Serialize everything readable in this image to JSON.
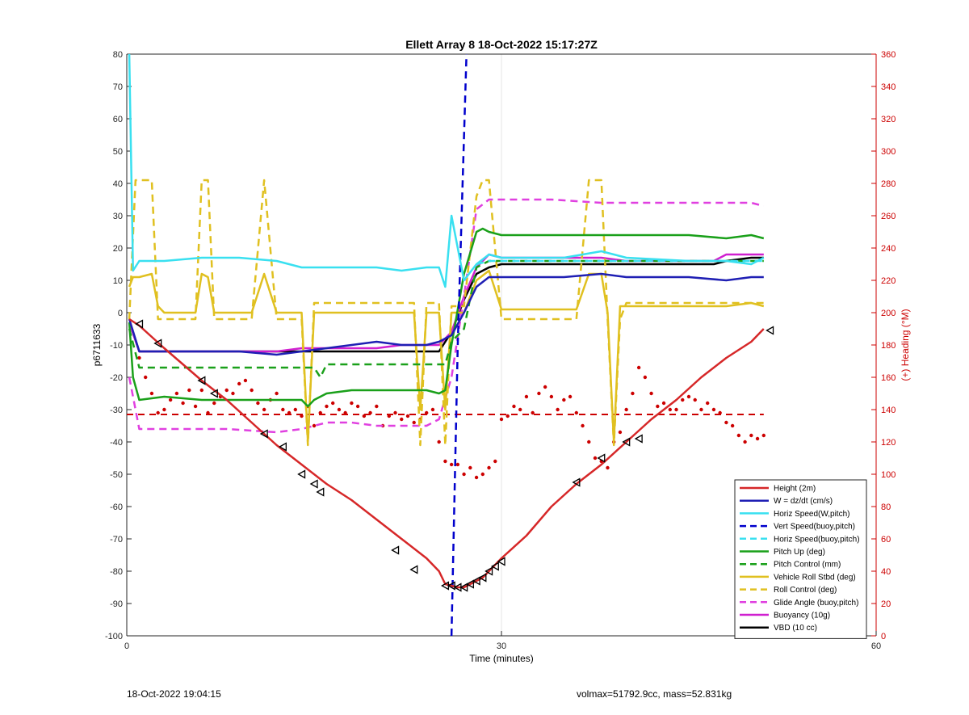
{
  "footer": {
    "timestamp": "18-Oct-2022 19:04:15",
    "summary": "volmax=51792.9cc, mass=52.831kg"
  },
  "chart_data": {
    "type": "line",
    "title": "Ellett Array 8 18-Oct-2022 15:17:27Z",
    "xlabel": "Time (minutes)",
    "ylabel": "p6711633",
    "y2label": "(+) Heading (°M)",
    "xlim": [
      0,
      60
    ],
    "ylim": [
      -100,
      80
    ],
    "y2lim": [
      0,
      360
    ],
    "xticks": [
      0,
      30,
      60
    ],
    "yticks": [
      -100,
      -90,
      -80,
      -70,
      -60,
      -50,
      -40,
      -30,
      -20,
      -10,
      0,
      10,
      20,
      30,
      40,
      50,
      60,
      70,
      80
    ],
    "y2ticks": [
      0,
      20,
      40,
      60,
      80,
      100,
      120,
      140,
      160,
      180,
      200,
      220,
      240,
      260,
      280,
      300,
      320,
      340,
      360
    ],
    "grid": "x-only",
    "legend_location": "bottom-right",
    "vertical_marker_x": 26.5,
    "series": [
      {
        "name": "Height (2m)",
        "color": "#d62728",
        "style": "solid",
        "x": [
          0.2,
          1,
          3,
          6,
          8,
          10,
          12,
          14,
          16,
          18,
          20,
          22,
          24,
          25,
          25.5,
          26,
          26.5,
          27,
          27.5,
          28,
          28.5,
          29,
          29.5,
          30,
          32,
          34,
          36,
          38,
          40,
          42,
          44,
          46,
          48,
          50,
          51
        ],
        "y": [
          -2,
          -4,
          -11,
          -21,
          -27,
          -34,
          -41,
          -47,
          -53,
          -58,
          -64,
          -70,
          -76,
          -80,
          -84,
          -84.5,
          -85,
          -85,
          -84,
          -83,
          -82,
          -80,
          -78,
          -76,
          -69,
          -60,
          -53,
          -47,
          -40,
          -33,
          -27,
          -20,
          -14,
          -9,
          -5
        ]
      },
      {
        "name": "W = dz/dt (cm/s)",
        "color": "#1f1fb4",
        "style": "solid",
        "x": [
          0.2,
          1,
          3,
          6,
          9,
          12,
          14,
          16,
          18,
          20,
          22,
          24,
          25,
          26,
          27,
          28,
          29,
          30,
          35,
          38,
          40,
          45,
          48,
          50,
          51
        ],
        "y": [
          -2,
          -12,
          -12,
          -12,
          -12,
          -13,
          -12,
          -11,
          -10,
          -9,
          -10,
          -10,
          -9,
          -7,
          0,
          8,
          11,
          11,
          11,
          12,
          11,
          11,
          10,
          11,
          11
        ]
      },
      {
        "name": "Horiz Speed(W,pitch)",
        "color": "#39e0f0",
        "style": "solid",
        "x": [
          0.2,
          0.5,
          1,
          3,
          6,
          9,
          12,
          14,
          16,
          18,
          20,
          22,
          24,
          25,
          25.5,
          26,
          27,
          28,
          29,
          30,
          35,
          38,
          40,
          45,
          48,
          50,
          51
        ],
        "y": [
          80,
          13,
          16,
          16,
          17,
          17,
          16,
          14,
          14,
          14,
          14,
          13,
          14,
          14,
          8,
          30,
          10,
          15,
          18,
          17,
          17,
          19,
          17,
          16,
          16,
          15,
          17
        ]
      },
      {
        "name": "Vert Speed(buoy,pitch)",
        "color": "#0000cc",
        "style": "dashed",
        "x": [
          26,
          26.5,
          27.2
        ],
        "y": [
          -100,
          -10,
          80
        ]
      },
      {
        "name": "Horiz Speed(buoy,pitch)",
        "color": "#39e0f0",
        "style": "dashed",
        "x": [
          28,
          29,
          30,
          35,
          40,
          45,
          50,
          51
        ],
        "y": [
          15,
          16,
          16,
          16,
          16,
          16,
          16,
          16
        ]
      },
      {
        "name": "Pitch Up (deg)",
        "color": "#1aa01a",
        "style": "solid",
        "x": [
          0.2,
          0.5,
          1,
          3,
          6,
          9,
          12,
          14,
          14.5,
          15,
          16,
          18,
          20,
          22,
          24,
          25,
          25.5,
          26,
          27,
          28,
          28.5,
          29,
          30,
          35,
          38,
          40,
          45,
          48,
          50,
          51
        ],
        "y": [
          -3,
          -20,
          -27,
          -26,
          -27,
          -27,
          -27,
          -27,
          -29,
          -27,
          -25,
          -24,
          -24,
          -24,
          -24,
          -25,
          -24,
          -10,
          12,
          25,
          26,
          25,
          24,
          24,
          24,
          24,
          24,
          23,
          24,
          23
        ]
      },
      {
        "name": "Pitch Control (mm)",
        "color": "#1aa01a",
        "style": "dashed",
        "x": [
          0.2,
          1,
          14,
          15,
          15.5,
          16,
          25,
          25.5,
          26,
          27,
          28,
          29,
          30,
          35,
          40,
          45,
          50,
          51
        ],
        "y": [
          -5,
          -17,
          -17,
          -17,
          -20,
          -16,
          -16,
          -16,
          -9,
          -5,
          14,
          16,
          16,
          16,
          16,
          16,
          16,
          16
        ]
      },
      {
        "name": "Vehicle Roll Stbd (deg)",
        "color": "#e0c020",
        "style": "solid",
        "x": [
          0.2,
          0.5,
          1,
          2,
          2.5,
          3,
          5,
          5.5,
          6,
          6.5,
          7,
          9,
          10,
          11,
          12,
          13,
          14,
          14.5,
          15,
          16,
          18,
          20,
          22,
          23,
          23.5,
          24,
          25,
          25.5,
          26,
          27,
          28,
          29,
          30,
          32,
          34,
          36,
          37,
          38,
          38.5,
          39,
          39.5,
          40,
          42,
          44,
          46,
          48,
          50,
          51
        ],
        "y": [
          8,
          11,
          11,
          12,
          2,
          0,
          0,
          0,
          12,
          11,
          0,
          0,
          0,
          12,
          0,
          0,
          0,
          -40,
          0,
          0,
          0,
          0,
          0,
          0,
          -30,
          0,
          0,
          -30,
          0,
          0,
          10,
          13,
          1,
          1,
          1,
          1,
          12,
          12,
          0,
          -40,
          2,
          2,
          2,
          2,
          2,
          2,
          3,
          2
        ]
      },
      {
        "name": "Roll Control (deg)",
        "color": "#e0c020",
        "style": "dashed",
        "x": [
          0.2,
          0.7,
          1,
          2,
          2.5,
          3,
          5,
          5.5,
          6,
          6.5,
          7,
          9,
          10,
          11,
          12,
          13,
          14,
          14.5,
          15,
          16,
          18,
          20,
          22,
          23,
          23.5,
          24,
          25,
          25.5,
          26,
          27,
          28,
          28.5,
          29,
          30,
          32,
          34,
          36,
          37,
          38,
          38.5,
          39,
          39.5,
          40,
          42,
          44,
          46,
          48,
          50,
          51
        ],
        "y": [
          -2,
          41,
          41,
          41,
          -2,
          -2,
          -2,
          -2,
          41,
          41,
          -2,
          -2,
          -2,
          41,
          -2,
          -2,
          -2,
          -41,
          3,
          3,
          3,
          3,
          3,
          3,
          -41,
          3,
          3,
          -41,
          2,
          2,
          36,
          41,
          41,
          -2,
          -2,
          -2,
          -2,
          41,
          41,
          -2,
          -41,
          -2,
          3,
          3,
          3,
          3,
          3,
          3,
          3
        ]
      },
      {
        "name": "Glide Angle (buoy,pitch)",
        "color": "#e040e0",
        "style": "dashed",
        "x": [
          0.2,
          1,
          4,
          8,
          12,
          14,
          15,
          16,
          18,
          20,
          22,
          24,
          25,
          26,
          27,
          28,
          29,
          30,
          34,
          38,
          40,
          44,
          48,
          50,
          51
        ],
        "y": [
          -20,
          -36,
          -36,
          -36,
          -37,
          -36,
          -35,
          -34,
          -34,
          -35,
          -35,
          -35,
          -33,
          -20,
          5,
          32,
          35,
          35,
          35,
          34,
          34,
          34,
          34,
          34,
          33
        ]
      },
      {
        "name": "Buoyancy (10g)",
        "color": "#d020d0",
        "style": "solid",
        "x": [
          0.2,
          1,
          3,
          6,
          9,
          12,
          14,
          16,
          18,
          20,
          22,
          24,
          25,
          26,
          27,
          28,
          29,
          30,
          35,
          38,
          40,
          45,
          47,
          48,
          50,
          51
        ],
        "y": [
          -3,
          -12,
          -12,
          -12,
          -12,
          -12,
          -11,
          -11,
          -11,
          -11,
          -10,
          -10,
          -10,
          -6,
          5,
          14,
          18,
          17,
          17,
          17,
          16,
          16,
          16,
          18,
          18,
          18
        ]
      },
      {
        "name": "VBD (10 cc)",
        "color": "#000000",
        "style": "solid",
        "x": [
          0.2,
          1,
          5,
          10,
          15,
          20,
          24.5,
          25,
          26,
          27,
          28,
          29,
          30,
          35,
          38,
          40,
          45,
          47,
          48,
          50,
          51
        ],
        "y": [
          -3,
          -12,
          -12,
          -12,
          -12,
          -12,
          -12,
          -12,
          -6,
          4,
          12,
          14,
          15,
          15,
          15,
          15,
          15,
          15,
          16,
          17,
          17
        ]
      }
    ],
    "heading_target": {
      "axis": "y2",
      "color": "#cc0000",
      "style": "dashed",
      "x": [
        0,
        51
      ],
      "y": [
        137,
        137
      ]
    },
    "heading_points": {
      "axis": "y2",
      "color": "#cc0000",
      "x": [
        1,
        1.5,
        2,
        2.5,
        3,
        3.5,
        4,
        4.5,
        5,
        5.5,
        6,
        6.5,
        7,
        7.5,
        8,
        8.5,
        9,
        9.5,
        10,
        10.5,
        11,
        11.5,
        12,
        12.5,
        13,
        13.5,
        14,
        14.5,
        15,
        15.5,
        16,
        16.5,
        17,
        17.5,
        18,
        18.5,
        19,
        19.5,
        20,
        20.5,
        21,
        21.5,
        22,
        22.5,
        23,
        23.5,
        24,
        24.5,
        25,
        25.5,
        26,
        26.5,
        27,
        27.5,
        28,
        28.5,
        29,
        29.5,
        30,
        30.5,
        31,
        31.5,
        32,
        32.5,
        33,
        33.5,
        34,
        34.5,
        35,
        35.5,
        36,
        36.5,
        37,
        37.5,
        38,
        38.5,
        39,
        39.5,
        40,
        40.5,
        41,
        41.5,
        42,
        42.5,
        43,
        43.5,
        44,
        44.5,
        45,
        45.5,
        46,
        46.5,
        47,
        47.5,
        48,
        48.5,
        49,
        49.5,
        50,
        50.5,
        51
      ],
      "y": [
        172,
        160,
        150,
        138,
        140,
        146,
        150,
        144,
        152,
        142,
        152,
        138,
        144,
        148,
        152,
        150,
        156,
        158,
        152,
        144,
        140,
        146,
        150,
        140,
        138,
        140,
        136,
        142,
        130,
        138,
        142,
        144,
        140,
        138,
        144,
        142,
        136,
        138,
        142,
        130,
        136,
        138,
        134,
        136,
        132,
        134,
        138,
        140,
        120,
        108,
        106,
        106,
        100,
        104,
        98,
        100,
        104,
        108,
        134,
        136,
        142,
        140,
        148,
        138,
        150,
        154,
        148,
        140,
        146,
        148,
        138,
        130,
        120,
        110,
        108,
        104,
        120,
        126,
        140,
        150,
        166,
        160,
        150,
        142,
        144,
        140,
        140,
        146,
        148,
        146,
        140,
        144,
        140,
        138,
        132,
        130,
        124,
        120,
        124,
        122,
        124
      ]
    },
    "markers": {
      "symbol": "triangle",
      "color": "#000000",
      "x": [
        1,
        2.5,
        6,
        7,
        11,
        12.5,
        14,
        15,
        15.5,
        21.5,
        23,
        25.5,
        26,
        26.5,
        27,
        27.5,
        28,
        28.5,
        29,
        29.5,
        30,
        36,
        38,
        40,
        41,
        51.5
      ],
      "y": [
        -3.5,
        -9.5,
        -21,
        -25,
        -37.5,
        -41.5,
        -50,
        -53,
        -55.5,
        -73.5,
        -79.5,
        -84.5,
        -84.5,
        -85,
        -85,
        -84,
        -83,
        -82,
        -80,
        -78.5,
        -77,
        -52.5,
        -45,
        -40,
        -39,
        -5.5
      ]
    }
  }
}
